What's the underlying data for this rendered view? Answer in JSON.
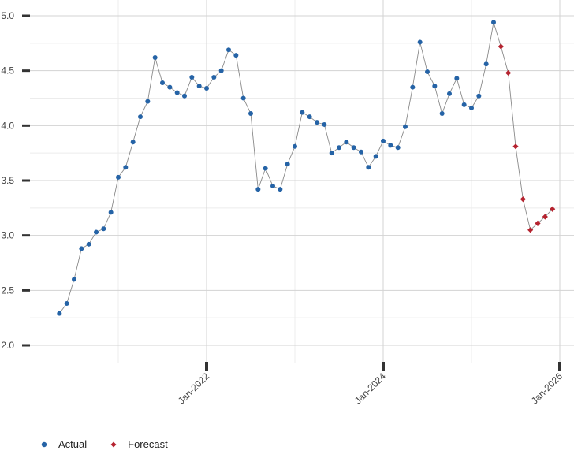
{
  "chart_data": {
    "type": "line",
    "title": "",
    "xlabel": "",
    "ylabel": "",
    "ylim": [
      2.0,
      5.0
    ],
    "y_ticks": [
      {
        "value": 2.0,
        "label": "2.0"
      },
      {
        "value": 2.5,
        "label": "2.5"
      },
      {
        "value": 3.0,
        "label": "3.0"
      },
      {
        "value": 3.5,
        "label": "3.5"
      },
      {
        "value": 4.0,
        "label": "4.0"
      },
      {
        "value": 4.5,
        "label": "4.5"
      },
      {
        "value": 5.0,
        "label": "5.0"
      }
    ],
    "x_ticks": [
      {
        "date": "2022-01",
        "label": "Jan-2022"
      },
      {
        "date": "2024-01",
        "label": "Jan-2024"
      },
      {
        "date": "2026-01",
        "label": "Jan-2026"
      }
    ],
    "grid": true,
    "legend_position": "bottom-left",
    "series": [
      {
        "name": "Actual",
        "color": "#2563a6",
        "marker": "circle",
        "x": [
          "2020-05",
          "2020-06",
          "2020-07",
          "2020-08",
          "2020-09",
          "2020-10",
          "2020-11",
          "2020-12",
          "2021-01",
          "2021-02",
          "2021-03",
          "2021-04",
          "2021-05",
          "2021-06",
          "2021-07",
          "2021-08",
          "2021-09",
          "2021-10",
          "2021-11",
          "2021-12",
          "2022-01",
          "2022-02",
          "2022-03",
          "2022-04",
          "2022-05",
          "2022-06",
          "2022-07",
          "2022-08",
          "2022-09",
          "2022-10",
          "2022-11",
          "2022-12",
          "2023-01",
          "2023-02",
          "2023-03",
          "2023-04",
          "2023-05",
          "2023-06",
          "2023-07",
          "2023-08",
          "2023-09",
          "2023-10",
          "2023-11",
          "2023-12",
          "2024-01",
          "2024-02",
          "2024-03",
          "2024-04",
          "2024-05",
          "2024-06",
          "2024-07",
          "2024-08",
          "2024-09",
          "2024-10",
          "2024-11",
          "2024-12",
          "2025-01",
          "2025-02",
          "2025-03"
        ],
        "values": [
          2.29,
          2.38,
          2.6,
          2.88,
          2.92,
          3.03,
          3.06,
          3.21,
          3.53,
          3.62,
          3.85,
          4.08,
          4.22,
          4.62,
          4.39,
          4.35,
          4.3,
          4.27,
          4.44,
          4.36,
          4.34,
          4.44,
          4.5,
          4.69,
          4.64,
          4.25,
          4.11,
          3.42,
          3.61,
          3.45,
          3.42,
          3.65,
          3.81,
          4.12,
          4.08,
          4.03,
          4.01,
          3.75,
          3.8,
          3.85,
          3.8,
          3.76,
          3.62,
          3.72,
          3.86,
          3.82,
          3.8,
          3.99,
          4.35,
          4.76,
          4.49,
          4.36,
          4.11,
          4.29,
          4.43,
          4.19,
          4.16,
          4.27,
          4.56
        ]
      },
      {
        "name": "Forecast",
        "color": "#b5232f",
        "marker": "diamond",
        "x": [
          "2025-05",
          "2025-06",
          "2025-07",
          "2025-08",
          "2025-09",
          "2025-10",
          "2025-11",
          "2025-12"
        ],
        "values": [
          4.72,
          4.48,
          3.81,
          3.33,
          3.05,
          3.11,
          3.17,
          3.24
        ]
      }
    ],
    "extra_points": [
      {
        "series": "Actual",
        "x": "2025-04",
        "value": 4.94
      }
    ]
  }
}
